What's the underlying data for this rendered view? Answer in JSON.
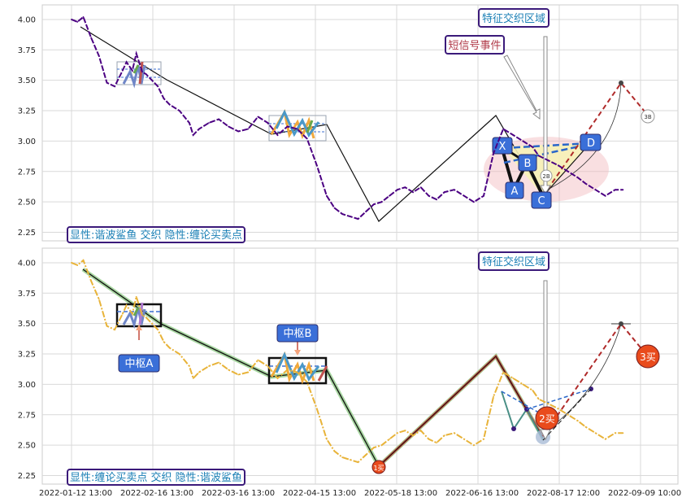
{
  "chart_data": [
    {
      "type": "line",
      "panel": "top",
      "legend_text": "显性:谐波鲨鱼 交织 隐性:缠论买卖点",
      "y_ticks": [
        4.0,
        3.75,
        3.5,
        3.25,
        3.0,
        2.75,
        2.5,
        2.25
      ],
      "ylim": [
        2.18,
        4.12
      ],
      "grid": true,
      "series": [
        {
          "role": "price",
          "color": "#4b0082",
          "x": [
            0,
            3,
            6,
            10,
            14,
            18,
            22,
            26,
            28,
            31,
            33,
            36,
            38,
            41,
            44,
            47,
            50,
            55,
            60,
            62,
            65,
            70,
            75,
            80,
            85,
            90,
            95,
            100,
            105,
            110,
            115,
            120,
            125,
            130,
            134,
            138,
            142,
            146,
            150,
            154,
            158,
            162,
            166,
            170,
            174,
            178,
            182,
            186,
            190,
            195,
            200,
            205,
            210,
            215,
            220,
            225,
            230,
            235,
            238,
            243,
            248,
            253,
            258,
            262,
            267,
            272,
            277,
            281
          ],
          "y": [
            4.0,
            3.98,
            4.02,
            3.85,
            3.7,
            3.48,
            3.45,
            3.58,
            3.65,
            3.58,
            3.72,
            3.57,
            3.55,
            3.5,
            3.45,
            3.35,
            3.3,
            3.25,
            3.15,
            3.05,
            3.1,
            3.15,
            3.18,
            3.12,
            3.08,
            3.1,
            3.2,
            3.15,
            3.05,
            3.12,
            3.1,
            3.02,
            2.8,
            2.55,
            2.45,
            2.4,
            2.38,
            2.36,
            2.42,
            2.48,
            2.5,
            2.55,
            2.6,
            2.62,
            2.58,
            2.62,
            2.55,
            2.52,
            2.58,
            2.6,
            2.55,
            2.5,
            2.55,
            2.9,
            3.1,
            3.05,
            3.0,
            2.95,
            2.88,
            2.84,
            2.8,
            2.75,
            2.7,
            2.65,
            2.6,
            2.55,
            2.6,
            2.6
          ]
        }
      ],
      "annotations": [
        {
          "text": "特征交织区域",
          "color": "#1a7fb5"
        },
        {
          "text": "短信号事件",
          "color": "#b03a48"
        },
        {
          "text": "X"
        },
        {
          "text": "A"
        },
        {
          "text": "B"
        },
        {
          "text": "C"
        },
        {
          "text": "D"
        },
        {
          "text": "2B"
        },
        {
          "text": "3B"
        }
      ]
    },
    {
      "type": "line",
      "panel": "bottom",
      "legend_text": "显性:缠论买卖点 交织 隐性:谐波鲨鱼",
      "y_ticks": [
        4.0,
        3.75,
        3.5,
        3.25,
        3.0,
        2.75,
        2.5,
        2.25
      ],
      "ylim": [
        2.18,
        4.12
      ],
      "grid": true,
      "x_tick_labels": [
        "2022-01-12 13:00",
        "2022-02-16 13:00",
        "2022-03-16 13:00",
        "2022-04-15 13:00",
        "2022-05-18 13:00",
        "2022-06-16 13:00",
        "2022-08-17 12:00",
        "2022-09-09 10:00"
      ],
      "series": [
        {
          "role": "price",
          "color": "#e8b339",
          "x": [
            0,
            3,
            6,
            10,
            14,
            18,
            22,
            26,
            28,
            31,
            33,
            36,
            38,
            41,
            44,
            47,
            50,
            55,
            60,
            62,
            65,
            70,
            75,
            80,
            85,
            90,
            95,
            100,
            105,
            110,
            115,
            120,
            125,
            130,
            134,
            138,
            142,
            146,
            150,
            154,
            158,
            162,
            166,
            170,
            174,
            178,
            182,
            186,
            190,
            195,
            200,
            205,
            210,
            215,
            220,
            225,
            230,
            235,
            238,
            243,
            248,
            253,
            258,
            262,
            267,
            272,
            277,
            281
          ],
          "y": [
            4.0,
            3.98,
            4.02,
            3.85,
            3.7,
            3.48,
            3.45,
            3.58,
            3.65,
            3.58,
            3.72,
            3.57,
            3.55,
            3.5,
            3.45,
            3.35,
            3.3,
            3.25,
            3.15,
            3.05,
            3.1,
            3.15,
            3.18,
            3.12,
            3.08,
            3.1,
            3.2,
            3.15,
            3.05,
            3.12,
            3.1,
            3.02,
            2.8,
            2.55,
            2.45,
            2.4,
            2.38,
            2.36,
            2.42,
            2.48,
            2.5,
            2.55,
            2.6,
            2.62,
            2.58,
            2.62,
            2.55,
            2.52,
            2.58,
            2.6,
            2.55,
            2.5,
            2.55,
            2.9,
            3.1,
            3.05,
            3.0,
            2.95,
            2.88,
            2.84,
            2.8,
            2.75,
            2.7,
            2.65,
            2.6,
            2.55,
            2.6,
            2.6
          ]
        }
      ],
      "annotations": [
        {
          "text": "特征交织区域",
          "color": "#1a7fb5"
        },
        {
          "text": "中枢A"
        },
        {
          "text": "中枢B"
        },
        {
          "text": "1买"
        },
        {
          "text": "2买"
        },
        {
          "text": "3买"
        }
      ]
    }
  ]
}
